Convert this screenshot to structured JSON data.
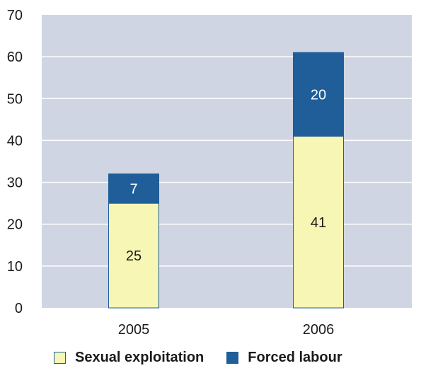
{
  "chart_data": {
    "type": "bar",
    "stacked": true,
    "categories": [
      "2005",
      "2006"
    ],
    "series": [
      {
        "name": "Sexual exploitation",
        "values": [
          25,
          41
        ],
        "color": "#f8f6b4"
      },
      {
        "name": "Forced labour",
        "values": [
          7,
          20
        ],
        "color": "#1f5e99"
      }
    ],
    "ylim": [
      0,
      70
    ],
    "yticks": [
      0,
      10,
      20,
      30,
      40,
      50,
      60,
      70
    ],
    "grid": true,
    "background": "#cfd5e3",
    "legend_position": "bottom"
  }
}
